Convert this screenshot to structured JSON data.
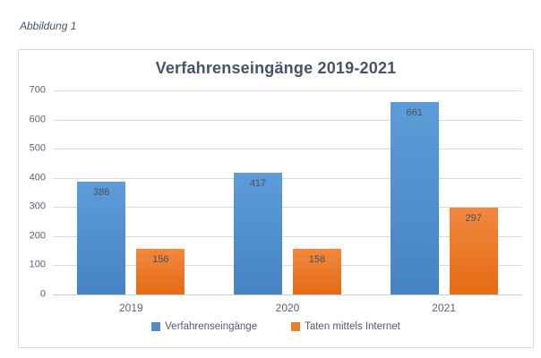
{
  "caption": "Abbildung 1",
  "chart_data": {
    "type": "bar",
    "title": "Verfahrenseingänge 2019-2021",
    "categories": [
      "2019",
      "2020",
      "2021"
    ],
    "series": [
      {
        "name": "Verfahrenseingänge",
        "values": [
          386,
          417,
          661
        ],
        "color_top": "#5d9cd8",
        "color_bottom": "#4583c5",
        "legend_color": "#4e8ccb"
      },
      {
        "name": "Taten mittels Internet",
        "values": [
          156,
          158,
          297
        ],
        "color_top": "#f1883f",
        "color_bottom": "#e56b14",
        "legend_color": "#ed7d31"
      }
    ],
    "xlabel": "",
    "ylabel": "",
    "ylim": [
      0,
      700
    ],
    "yticks": [
      0,
      100,
      200,
      300,
      400,
      500,
      600,
      700
    ],
    "grid": true,
    "legend_position": "bottom",
    "data_labels": "inside-end"
  },
  "colors": {
    "title": "#44546a",
    "axis_text": "#5a6272",
    "gridline": "#dadada",
    "card_border": "#d9d9d9",
    "data_label": "#4a5260"
  }
}
